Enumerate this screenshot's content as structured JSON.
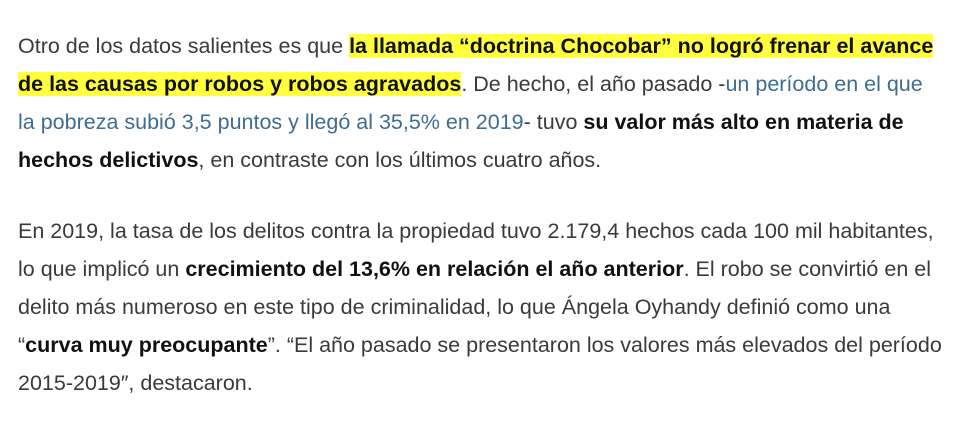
{
  "paragraph1": {
    "t1": "Otro de los datos salientes es que ",
    "hl1": "la llamada “doctrina Chocobar” no logró frenar el avance de las causas por robos y robos agravados",
    "t2": ". De hecho, el año pasado -",
    "link": "un período en el que la pobreza subió 3,5 puntos y llegó al 35,5% en 2019",
    "t3": "- tuvo ",
    "b1": "su valor más alto en materia de hechos delictivos",
    "t4": ", en contraste con los últimos cuatro años."
  },
  "paragraph2": {
    "t1": "En 2019, la tasa de los delitos contra la propiedad tuvo 2.179,4 hechos cada 100 mil habitantes, lo que implicó un ",
    "b1": "crecimiento del 13,6% en relación el año anterior",
    "t2": ". El robo se convirtió en el delito más numeroso en este tipo de criminalidad, lo que Ángela Oyhandy definió como una “",
    "b2": "curva muy preocupante",
    "t3": "”. “El año pasado se presentaron los valores más elevados del período 2015-2019″, destacaron."
  },
  "colors": {
    "highlight": "#ffff3d",
    "link": "#3e6c93",
    "text": "#3a3a3a"
  }
}
